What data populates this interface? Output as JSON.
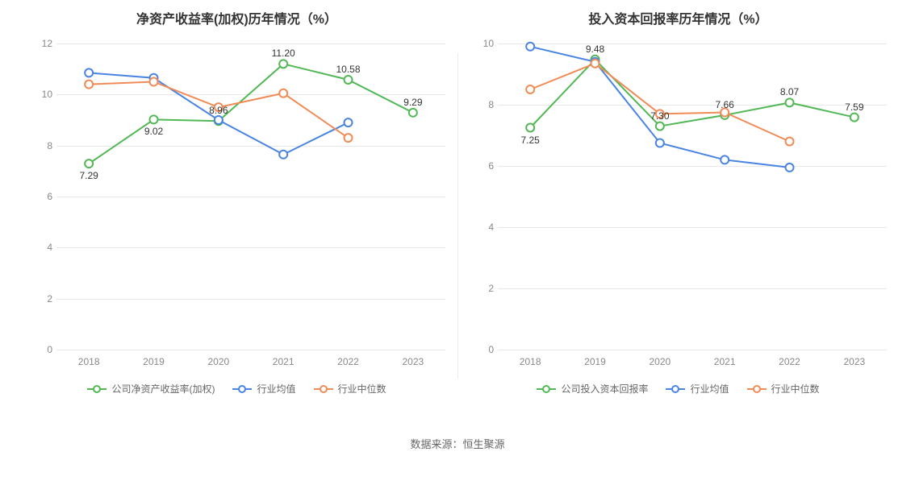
{
  "chart_left": {
    "type": "line",
    "title": "净资产收益率(加权)历年情况（%）",
    "title_fontsize": 16,
    "background_color": "#ffffff",
    "grid_color": "#e8e8e8",
    "axis_label_color": "#888888",
    "axis_fontsize": 12,
    "categories": [
      "2018",
      "2019",
      "2020",
      "2021",
      "2022",
      "2023"
    ],
    "ylim": [
      0,
      12
    ],
    "ytick_step": 2,
    "line_width": 2,
    "marker_size": 5,
    "marker_style": "circle-hollow",
    "series": [
      {
        "name": "公司净资产收益率(加权)",
        "color": "#52b755",
        "values": [
          7.29,
          9.02,
          8.96,
          11.2,
          10.58,
          9.29
        ],
        "labels": [
          "7.29",
          "9.02",
          "8.96",
          "11.20",
          "10.58",
          "9.29"
        ],
        "label_offsets": [
          "below",
          "below",
          "above",
          "above",
          "above",
          "above"
        ]
      },
      {
        "name": "行业均值",
        "color": "#4a84e3",
        "values": [
          10.85,
          10.65,
          9.0,
          7.65,
          8.9,
          null
        ],
        "labels": [
          null,
          null,
          null,
          null,
          null,
          null
        ]
      },
      {
        "name": "行业中位数",
        "color": "#f08b56",
        "values": [
          10.4,
          10.5,
          9.5,
          10.05,
          8.3,
          null
        ],
        "labels": [
          null,
          null,
          null,
          null,
          null,
          null
        ]
      }
    ]
  },
  "chart_right": {
    "type": "line",
    "title": "投入资本回报率历年情况（%）",
    "title_fontsize": 16,
    "background_color": "#ffffff",
    "grid_color": "#e8e8e8",
    "axis_label_color": "#888888",
    "axis_fontsize": 12,
    "categories": [
      "2018",
      "2019",
      "2020",
      "2021",
      "2022",
      "2023"
    ],
    "ylim": [
      0,
      10
    ],
    "ytick_step": 2,
    "line_width": 2,
    "marker_size": 5,
    "marker_style": "circle-hollow",
    "series": [
      {
        "name": "公司投入资本回报率",
        "color": "#52b755",
        "values": [
          7.25,
          9.48,
          7.3,
          7.66,
          8.07,
          7.59
        ],
        "labels": [
          "7.25",
          "9.48",
          "7.30",
          "7.66",
          "8.07",
          "7.59"
        ],
        "label_offsets": [
          "below",
          "above",
          "above",
          "above",
          "above",
          "above"
        ]
      },
      {
        "name": "行业均值",
        "color": "#4a84e3",
        "values": [
          9.9,
          9.4,
          6.75,
          6.2,
          5.95,
          null
        ],
        "labels": [
          null,
          null,
          null,
          null,
          null,
          null
        ]
      },
      {
        "name": "行业中位数",
        "color": "#f08b56",
        "values": [
          8.5,
          9.35,
          7.7,
          7.75,
          6.8,
          null
        ],
        "labels": [
          null,
          null,
          null,
          null,
          null,
          null
        ]
      }
    ]
  },
  "source": "数据来源：恒生聚源"
}
